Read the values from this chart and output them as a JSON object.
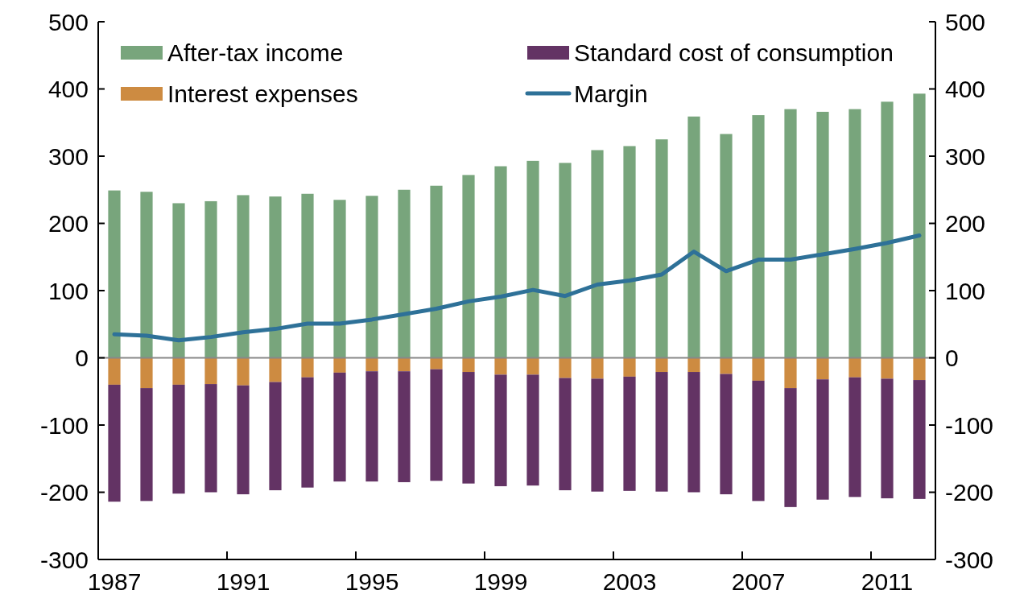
{
  "chart_data": {
    "type": "bar",
    "stacked": true,
    "categories": [
      "1987",
      null,
      null,
      null,
      "1991",
      null,
      null,
      null,
      "1995",
      null,
      null,
      null,
      "1999",
      null,
      null,
      null,
      "2003",
      null,
      null,
      null,
      "2007",
      null,
      null,
      null,
      "2011",
      null
    ],
    "series": [
      {
        "name": "After-tax income",
        "color": "#78a57c",
        "values": [
          249,
          247,
          230,
          233,
          242,
          240,
          244,
          235,
          241,
          250,
          256,
          272,
          285,
          293,
          290,
          309,
          315,
          325,
          359,
          333,
          361,
          370,
          366,
          370,
          381,
          393
        ]
      },
      {
        "name": "Interest expenses",
        "color": "#cd8b41",
        "values": [
          -40,
          -45,
          -40,
          -39,
          -41,
          -36,
          -29,
          -22,
          -20,
          -20,
          -17,
          -21,
          -25,
          -25,
          -30,
          -31,
          -28,
          -21,
          -21,
          -24,
          -34,
          -45,
          -32,
          -29,
          -31,
          -33
        ]
      },
      {
        "name": "Standard cost of consumption",
        "color": "#633364",
        "values": [
          -174,
          -168,
          -162,
          -161,
          -162,
          -161,
          -164,
          -162,
          -164,
          -165,
          -166,
          -166,
          -166,
          -165,
          -167,
          -168,
          -170,
          -178,
          -179,
          -179,
          -179,
          -177,
          -179,
          -178,
          -178,
          -177
        ]
      },
      {
        "name": "Margin",
        "type": "line",
        "color": "#2e7198",
        "values": [
          35,
          33,
          26,
          31,
          38,
          43,
          51,
          51,
          57,
          65,
          73,
          84,
          91,
          101,
          92,
          109,
          115,
          124,
          158,
          129,
          146,
          146,
          154,
          162,
          171,
          182
        ]
      }
    ],
    "ylim": [
      -300,
      500
    ],
    "yticks": [
      -300,
      -200,
      -100,
      0,
      100,
      200,
      300,
      400,
      500
    ],
    "y2lim": [
      -300,
      500
    ],
    "y2ticks": [
      -300,
      -200,
      -100,
      0,
      100,
      200,
      300,
      400,
      500
    ],
    "legend": "top"
  }
}
